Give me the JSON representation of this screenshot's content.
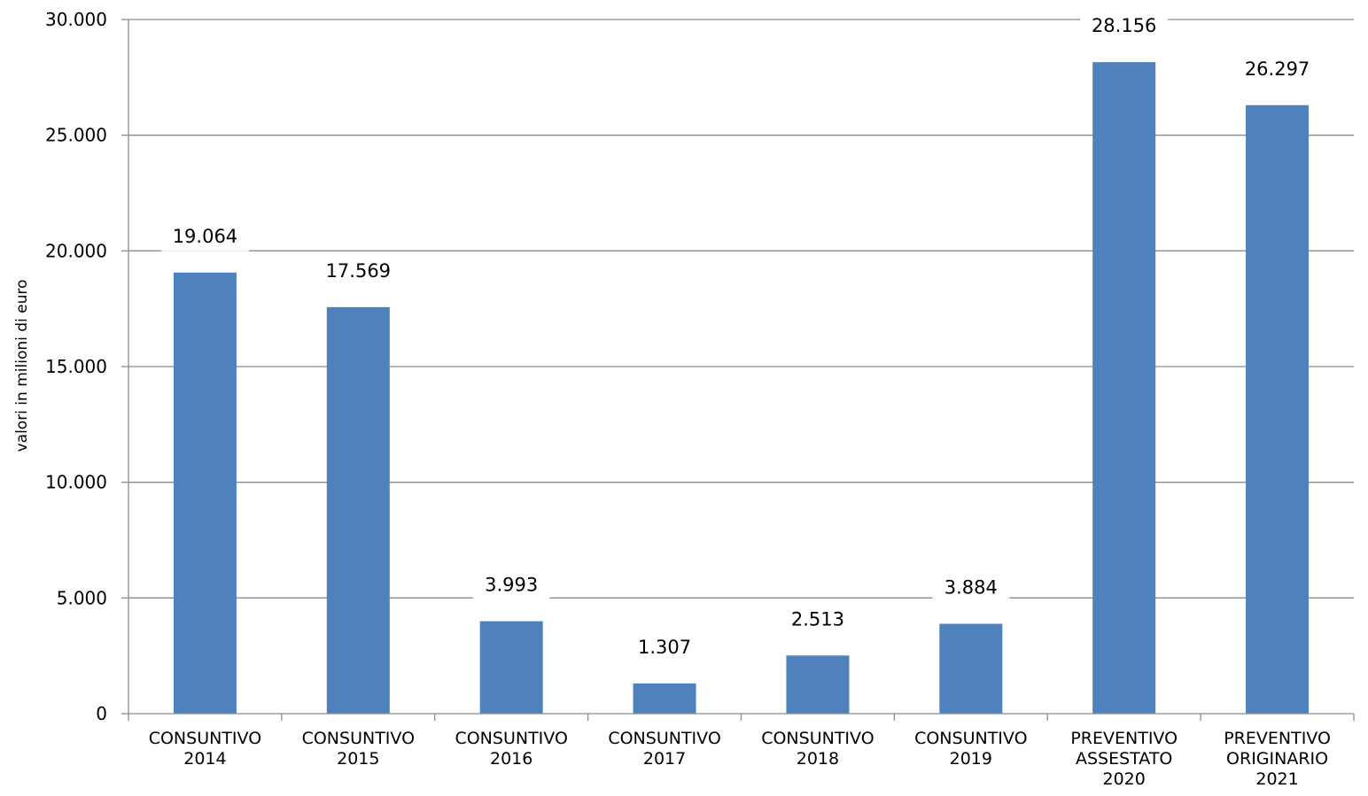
{
  "chart_data": {
    "type": "bar",
    "title": "",
    "xlabel": "",
    "ylabel": "valori in milioni di euro",
    "ylim": [
      0,
      30000
    ],
    "yticks": [
      0,
      5000,
      10000,
      15000,
      20000,
      25000,
      30000
    ],
    "ytick_labels": [
      "0",
      "5.000",
      "10.000",
      "15.000",
      "20.000",
      "25.000",
      "30.000"
    ],
    "grid": true,
    "legend": "none",
    "categories": [
      [
        "CONSUNTIVO",
        "2014"
      ],
      [
        "CONSUNTIVO",
        "2015"
      ],
      [
        "CONSUNTIVO",
        "2016"
      ],
      [
        "CONSUNTIVO",
        "2017"
      ],
      [
        "CONSUNTIVO",
        "2018"
      ],
      [
        "CONSUNTIVO",
        "2019"
      ],
      [
        "PREVENTIVO",
        "ASSESTATO",
        "2020"
      ],
      [
        "PREVENTIVO",
        "ORIGINARIO",
        "2021"
      ]
    ],
    "values": [
      19064,
      17569,
      3993,
      1307,
      2513,
      3884,
      28156,
      26297
    ],
    "value_labels": [
      "19.064",
      "17.569",
      "3.993",
      "1.307",
      "2.513",
      "3.884",
      "28.156",
      "26.297"
    ],
    "colors": {
      "bar": "#4F81BD",
      "grid": "#8C8C8C",
      "axis": "#8C8C8C"
    }
  }
}
